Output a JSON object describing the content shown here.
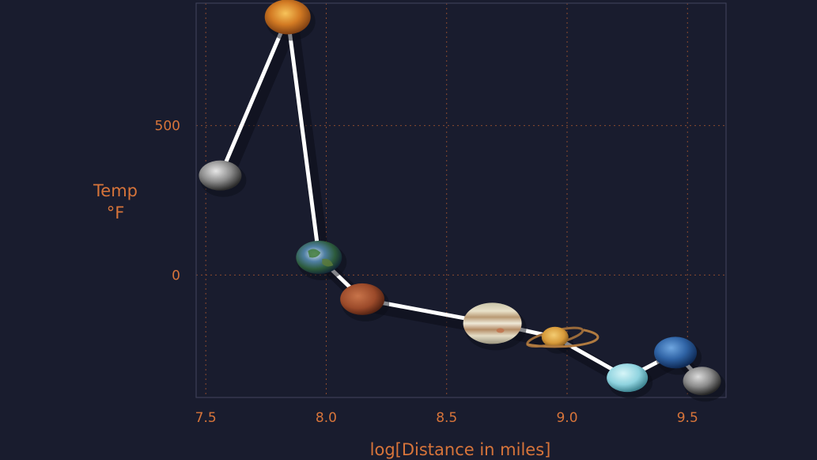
{
  "colors": {
    "background": "#191c2e",
    "frame": "#3c3f56",
    "grid": "#8a4a2e",
    "label": "#d7743a",
    "line": "#ffffff"
  },
  "chart_data": {
    "type": "line",
    "xlabel": "log[Distance in miles]",
    "ylabel_lines": [
      "Temp",
      "°F"
    ],
    "xlim": [
      7.46,
      9.66
    ],
    "ylim": [
      -410,
      910
    ],
    "x_ticks": [
      7.5,
      8.0,
      8.5,
      9.0,
      9.5
    ],
    "x_tick_labels": [
      "7.5",
      "8.0",
      "8.5",
      "9.0",
      "9.5"
    ],
    "y_ticks": [
      0,
      500
    ],
    "y_tick_labels": [
      "0",
      "500"
    ],
    "grid": true,
    "grid_style": "dotted",
    "marker_style": "planet images",
    "points": [
      {
        "x": 7.56,
        "y": 333,
        "marker": "mercury-icon"
      },
      {
        "x": 7.84,
        "y": 864,
        "marker": "venus-icon"
      },
      {
        "x": 7.97,
        "y": 59,
        "marker": "earth-icon"
      },
      {
        "x": 8.15,
        "y": -81,
        "marker": "mars-icon"
      },
      {
        "x": 8.69,
        "y": -162,
        "marker": "jupiter-icon"
      },
      {
        "x": 8.95,
        "y": -208,
        "marker": "saturn-icon"
      },
      {
        "x": 9.25,
        "y": -344,
        "marker": "uranus-icon"
      },
      {
        "x": 9.45,
        "y": -260,
        "marker": "neptune-icon"
      },
      {
        "x": 9.56,
        "y": -355,
        "marker": "pluto-icon"
      }
    ]
  }
}
